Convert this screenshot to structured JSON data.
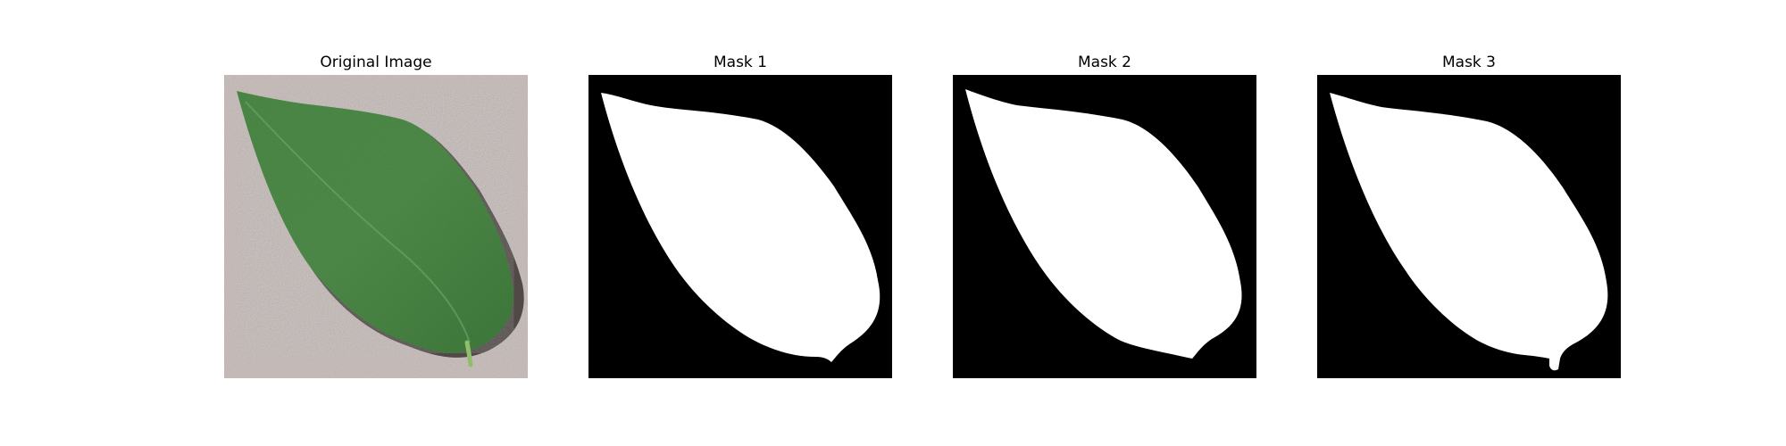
{
  "figure": {
    "panels": [
      {
        "title": "Original Image",
        "kind": "photo"
      },
      {
        "title": "Mask 1",
        "kind": "mask"
      },
      {
        "title": "Mask 2",
        "kind": "mask"
      },
      {
        "title": "Mask 3",
        "kind": "mask"
      }
    ]
  },
  "colors": {
    "background": "#ffffff",
    "mask_background": "#000000",
    "mask_foreground": "#ffffff",
    "leaf": "#4f8a48",
    "leaf_dark": "#3e7038",
    "paper": "#c9bfbc"
  }
}
